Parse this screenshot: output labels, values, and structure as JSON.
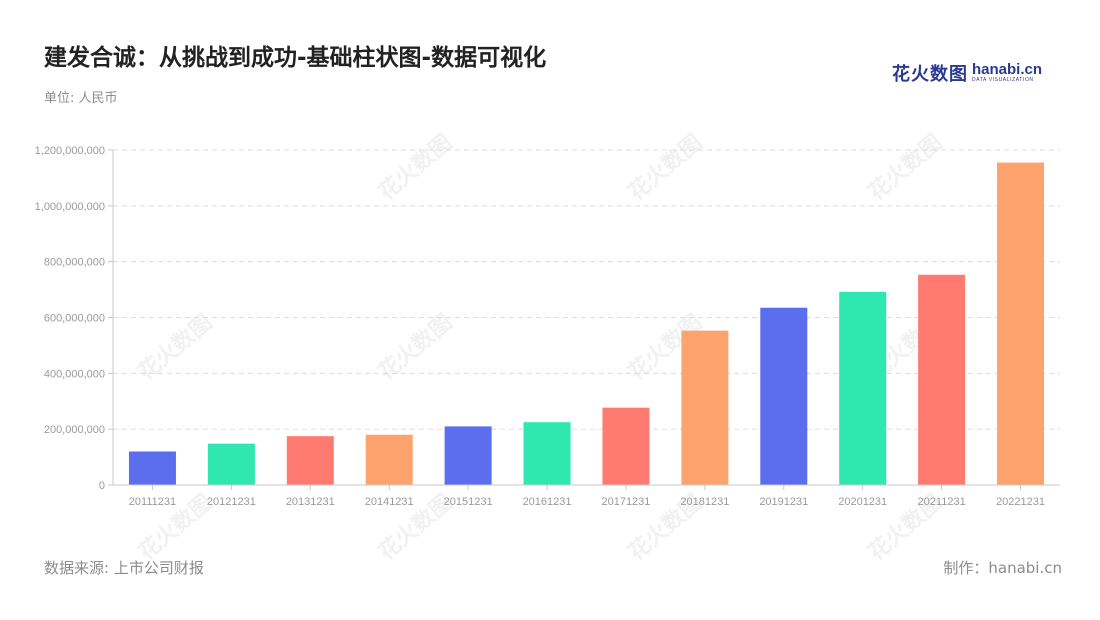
{
  "header": {
    "title": "建发合诚：从挑战到成功-基础柱状图-数据可视化",
    "unit": "单位: 人民币"
  },
  "logo": {
    "cn": "花火数图",
    "en": "hanabi.cn",
    "sub": "DATA VISUALIZATION"
  },
  "footer": {
    "source": "数据来源: 上市公司财报",
    "credit": "制作：hanabi.cn"
  },
  "watermark": "花火数图",
  "chart_data": {
    "type": "bar",
    "title": "建发合诚：从挑战到成功-基础柱状图-数据可视化",
    "categories": [
      "20111231",
      "20121231",
      "20131231",
      "20141231",
      "20151231",
      "20161231",
      "20171231",
      "20181231",
      "20191231",
      "20201231",
      "20211231",
      "20221231"
    ],
    "values": [
      120000000,
      148000000,
      175000000,
      180000000,
      210000000,
      225000000,
      277000000,
      553000000,
      635000000,
      692000000,
      753000000,
      1155000000
    ],
    "colors": [
      "#5b6fee",
      "#2ee8b0",
      "#ff7a70",
      "#ffa36e",
      "#5b6fee",
      "#2ee8b0",
      "#ff7a70",
      "#ffa36e",
      "#5b6fee",
      "#2ee8b0",
      "#ff7a70",
      "#ffa36e"
    ],
    "yticks": [
      "0",
      "200,000,000",
      "400,000,000",
      "600,000,000",
      "800,000,000",
      "1,000,000,000",
      "1,200,000,000"
    ],
    "ylim": [
      0,
      1200000000
    ],
    "grid": true,
    "xlabel": "",
    "ylabel": ""
  }
}
